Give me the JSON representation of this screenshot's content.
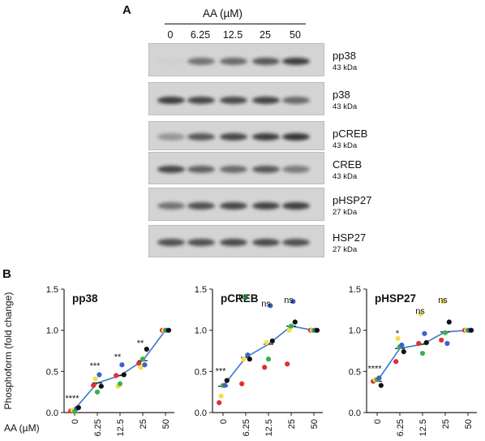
{
  "panelA": {
    "letter": "A",
    "treatment_label": "AA (µM)",
    "lanes": [
      "0",
      "6.25",
      "12.5",
      "25",
      "50"
    ],
    "blots": [
      {
        "name": "pp38",
        "kda": "43 kDa",
        "intensity": [
          0.02,
          0.55,
          0.6,
          0.7,
          0.85
        ]
      },
      {
        "name": "p38",
        "kda": "43 kDa",
        "intensity": [
          0.85,
          0.8,
          0.78,
          0.82,
          0.6
        ]
      },
      {
        "name": "pCREB",
        "kda": "43 kDa",
        "intensity": [
          0.35,
          0.7,
          0.8,
          0.85,
          0.9
        ]
      },
      {
        "name": "CREB",
        "kda": "43 kDa",
        "intensity": [
          0.8,
          0.65,
          0.6,
          0.7,
          0.5
        ]
      },
      {
        "name": "pHSP27",
        "kda": "27 kDa",
        "intensity": [
          0.55,
          0.75,
          0.8,
          0.82,
          0.85
        ]
      },
      {
        "name": "HSP27",
        "kda": "27 kDa",
        "intensity": [
          0.75,
          0.75,
          0.78,
          0.78,
          0.75
        ]
      }
    ]
  },
  "panelB": {
    "letter": "B",
    "ylabel": "Phosphoform (fold change)",
    "xaxis_label": "AA (µM)"
  },
  "colors": {
    "line": "#3a78c9",
    "replicates": [
      "#e03030",
      "#f2e04a",
      "#3ab14a",
      "#3a63c9",
      "#111111"
    ]
  },
  "chart_data": [
    {
      "type": "scatter",
      "title": "pp38",
      "categories": [
        "0",
        "6.25",
        "12.5",
        "25",
        "50"
      ],
      "ylim": [
        0,
        1.5
      ],
      "yticks": [
        "0.0",
        "0.5",
        "1.0",
        "1.5"
      ],
      "mean_line": [
        0.04,
        0.36,
        0.45,
        0.63,
        1.0
      ],
      "series": [
        {
          "color": "red",
          "values": [
            0.02,
            0.33,
            0.45,
            0.6,
            1.0
          ]
        },
        {
          "color": "yellow",
          "values": [
            0.03,
            0.41,
            0.32,
            0.55,
            1.0
          ]
        },
        {
          "color": "green",
          "values": [
            0.01,
            0.25,
            0.35,
            0.65,
            1.0
          ]
        },
        {
          "color": "blue",
          "values": [
            0.05,
            0.46,
            0.58,
            0.58,
            1.0
          ]
        },
        {
          "color": "black",
          "values": [
            0.06,
            0.32,
            0.46,
            0.77,
            1.0
          ]
        }
      ],
      "significance": [
        "****",
        "***",
        "**",
        "**",
        ""
      ]
    },
    {
      "type": "scatter",
      "title": "pCREB",
      "categories": [
        "0",
        "6.25",
        "12.5",
        "25",
        "50"
      ],
      "ylim": [
        0,
        1.5
      ],
      "yticks": [
        "0.0",
        "0.5",
        "1.0",
        "1.5"
      ],
      "mean_line": [
        0.32,
        0.67,
        0.83,
        1.05,
        1.0
      ],
      "series": [
        {
          "color": "red",
          "values": [
            0.12,
            0.35,
            0.55,
            0.59,
            1.0
          ]
        },
        {
          "color": "yellow",
          "values": [
            0.2,
            0.65,
            0.85,
            1.0,
            1.0
          ]
        },
        {
          "color": "green",
          "values": [
            0.33,
            1.4,
            0.65,
            1.05,
            1.0
          ]
        },
        {
          "color": "blue",
          "values": [
            0.33,
            0.7,
            1.3,
            1.35,
            1.0
          ]
        },
        {
          "color": "black",
          "values": [
            0.39,
            0.65,
            0.87,
            1.1,
            1.0
          ]
        }
      ],
      "significance": [
        "***",
        "ns",
        "ns",
        "ns",
        ""
      ]
    },
    {
      "type": "scatter",
      "title": "pHSP27",
      "categories": [
        "0",
        "6.25",
        "12.5",
        "25",
        "50"
      ],
      "ylim": [
        0,
        1.5
      ],
      "yticks": [
        "0.0",
        "0.5",
        "1.0",
        "1.5"
      ],
      "mean_line": [
        0.38,
        0.78,
        0.83,
        0.98,
        1.0
      ],
      "series": [
        {
          "color": "red",
          "values": [
            0.38,
            0.62,
            0.84,
            0.88,
            1.0
          ]
        },
        {
          "color": "yellow",
          "values": [
            0.4,
            0.9,
            1.2,
            1.35,
            1.0
          ]
        },
        {
          "color": "green",
          "values": [
            0.4,
            0.8,
            0.72,
            0.97,
            1.0
          ]
        },
        {
          "color": "blue",
          "values": [
            0.42,
            0.82,
            0.96,
            0.84,
            1.0
          ]
        },
        {
          "color": "black",
          "values": [
            0.33,
            0.74,
            0.85,
            1.1,
            1.0
          ]
        }
      ],
      "significance": [
        "****",
        "*",
        "ns",
        "ns",
        ""
      ]
    }
  ]
}
